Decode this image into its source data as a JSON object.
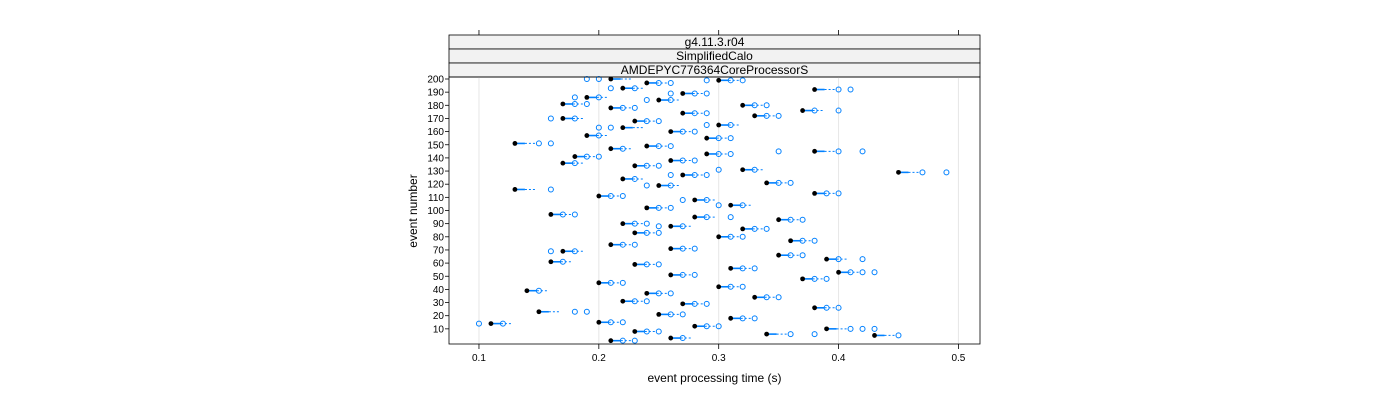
{
  "chart_data": {
    "type": "box-dotplot",
    "strips": [
      "g4.11.3.r04",
      "SimplifiedCalo",
      "AMDEPYC776364CoreProcessorS"
    ],
    "xlabel": "event processing time (s)",
    "ylabel": "event number",
    "xlim": [
      0.075,
      0.518
    ],
    "ylim": [
      0,
      200
    ],
    "x_ticks": [
      0.1,
      0.2,
      0.3,
      0.4,
      0.5
    ],
    "x_tick_labels": [
      "0.1",
      "0.2",
      "0.3",
      "0.4",
      "0.5"
    ],
    "y_ticks": [
      10,
      20,
      30,
      40,
      50,
      60,
      70,
      80,
      90,
      100,
      110,
      120,
      130,
      140,
      150,
      160,
      170,
      180,
      190,
      200
    ],
    "y_tick_labels": [
      "10",
      "20",
      "30",
      "40",
      "50",
      "60",
      "70",
      "80",
      "90",
      "100",
      "110",
      "120",
      "130",
      "140",
      "150",
      "160",
      "170",
      "180",
      "190",
      "200"
    ],
    "grid": "vertical",
    "colors": {
      "median": "#000000",
      "box": "#0080ff",
      "outlier": "#0080ff",
      "strip_bg": "#f2f2f2",
      "grid": "#e6e6e6"
    },
    "events": [
      {
        "y": 200,
        "median": 0.21,
        "outliers": [
          0.19,
          0.2
        ]
      },
      {
        "y": 199,
        "median": 0.3,
        "outliers": [
          0.29,
          0.31,
          0.32
        ]
      },
      {
        "y": 197,
        "median": 0.24,
        "outliers": [
          0.25,
          0.26
        ]
      },
      {
        "y": 193,
        "median": 0.22,
        "outliers": [
          0.21,
          0.23
        ]
      },
      {
        "y": 192,
        "median": 0.38,
        "outliers": [
          0.4,
          0.41
        ]
      },
      {
        "y": 189,
        "median": 0.27,
        "outliers": [
          0.26,
          0.28,
          0.29
        ]
      },
      {
        "y": 186,
        "median": 0.19,
        "outliers": [
          0.18,
          0.2
        ]
      },
      {
        "y": 184,
        "median": 0.25,
        "outliers": [
          0.24,
          0.26
        ]
      },
      {
        "y": 181,
        "median": 0.17,
        "outliers": [
          0.18,
          0.19
        ]
      },
      {
        "y": 180,
        "median": 0.32,
        "outliers": [
          0.33,
          0.34
        ]
      },
      {
        "y": 178,
        "median": 0.21,
        "outliers": [
          0.22,
          0.23
        ]
      },
      {
        "y": 176,
        "median": 0.37,
        "outliers": [
          0.38,
          0.4
        ]
      },
      {
        "y": 174,
        "median": 0.27,
        "outliers": [
          0.28,
          0.29
        ]
      },
      {
        "y": 172,
        "median": 0.33,
        "outliers": [
          0.34,
          0.35
        ]
      },
      {
        "y": 170,
        "median": 0.17,
        "outliers": [
          0.16,
          0.18
        ]
      },
      {
        "y": 168,
        "median": 0.23,
        "outliers": [
          0.24,
          0.25
        ]
      },
      {
        "y": 165,
        "median": 0.3,
        "outliers": [
          0.29,
          0.31
        ]
      },
      {
        "y": 163,
        "median": 0.22,
        "outliers": [
          0.2,
          0.21
        ]
      },
      {
        "y": 160,
        "median": 0.26,
        "outliers": [
          0.27,
          0.28
        ]
      },
      {
        "y": 157,
        "median": 0.19,
        "outliers": [
          0.2
        ]
      },
      {
        "y": 155,
        "median": 0.29,
        "outliers": [
          0.3,
          0.31
        ]
      },
      {
        "y": 151,
        "median": 0.13,
        "outliers": [
          0.15,
          0.16
        ]
      },
      {
        "y": 149,
        "median": 0.24,
        "outliers": [
          0.25,
          0.26
        ]
      },
      {
        "y": 147,
        "median": 0.21,
        "outliers": [
          0.22
        ]
      },
      {
        "y": 145,
        "median": 0.38,
        "outliers": [
          0.35,
          0.4,
          0.42
        ]
      },
      {
        "y": 143,
        "median": 0.29,
        "outliers": [
          0.3,
          0.31
        ]
      },
      {
        "y": 141,
        "median": 0.18,
        "outliers": [
          0.19,
          0.2
        ]
      },
      {
        "y": 138,
        "median": 0.26,
        "outliers": [
          0.27,
          0.28
        ]
      },
      {
        "y": 136,
        "median": 0.17,
        "outliers": [
          0.18
        ]
      },
      {
        "y": 134,
        "median": 0.23,
        "outliers": [
          0.24,
          0.25
        ]
      },
      {
        "y": 131,
        "median": 0.32,
        "outliers": [
          0.3,
          0.33
        ]
      },
      {
        "y": 129,
        "median": 0.45,
        "outliers": [
          0.47,
          0.49
        ]
      },
      {
        "y": 127,
        "median": 0.27,
        "outliers": [
          0.26,
          0.28,
          0.29
        ]
      },
      {
        "y": 124,
        "median": 0.22,
        "outliers": [
          0.23
        ]
      },
      {
        "y": 121,
        "median": 0.34,
        "outliers": [
          0.35,
          0.36
        ]
      },
      {
        "y": 119,
        "median": 0.25,
        "outliers": [
          0.24,
          0.26
        ]
      },
      {
        "y": 116,
        "median": 0.13,
        "outliers": [
          0.16
        ]
      },
      {
        "y": 113,
        "median": 0.38,
        "outliers": [
          0.39,
          0.4
        ]
      },
      {
        "y": 111,
        "median": 0.2,
        "outliers": [
          0.21,
          0.22
        ]
      },
      {
        "y": 108,
        "median": 0.28,
        "outliers": [
          0.27,
          0.29
        ]
      },
      {
        "y": 104,
        "median": 0.31,
        "outliers": [
          0.3,
          0.32
        ]
      },
      {
        "y": 102,
        "median": 0.24,
        "outliers": [
          0.25,
          0.26
        ]
      },
      {
        "y": 97,
        "median": 0.16,
        "outliers": [
          0.17,
          0.18
        ]
      },
      {
        "y": 95,
        "median": 0.28,
        "outliers": [
          0.29,
          0.31
        ]
      },
      {
        "y": 93,
        "median": 0.35,
        "outliers": [
          0.36,
          0.37
        ]
      },
      {
        "y": 90,
        "median": 0.22,
        "outliers": [
          0.23,
          0.24
        ]
      },
      {
        "y": 88,
        "median": 0.26,
        "outliers": [
          0.25,
          0.27
        ]
      },
      {
        "y": 86,
        "median": 0.32,
        "outliers": [
          0.33,
          0.34
        ]
      },
      {
        "y": 83,
        "median": 0.23,
        "outliers": [
          0.24,
          0.25
        ]
      },
      {
        "y": 80,
        "median": 0.3,
        "outliers": [
          0.31,
          0.32
        ]
      },
      {
        "y": 77,
        "median": 0.36,
        "outliers": [
          0.37,
          0.38
        ]
      },
      {
        "y": 74,
        "median": 0.21,
        "outliers": [
          0.22,
          0.23
        ]
      },
      {
        "y": 71,
        "median": 0.26,
        "outliers": [
          0.27,
          0.28
        ]
      },
      {
        "y": 69,
        "median": 0.17,
        "outliers": [
          0.16,
          0.18
        ]
      },
      {
        "y": 66,
        "median": 0.35,
        "outliers": [
          0.36,
          0.37
        ]
      },
      {
        "y": 63,
        "median": 0.39,
        "outliers": [
          0.4,
          0.42
        ]
      },
      {
        "y": 61,
        "median": 0.16,
        "outliers": [
          0.17
        ]
      },
      {
        "y": 59,
        "median": 0.23,
        "outliers": [
          0.24,
          0.25
        ]
      },
      {
        "y": 56,
        "median": 0.31,
        "outliers": [
          0.32,
          0.33
        ]
      },
      {
        "y": 53,
        "median": 0.4,
        "outliers": [
          0.41,
          0.42,
          0.43
        ]
      },
      {
        "y": 51,
        "median": 0.26,
        "outliers": [
          0.27,
          0.28
        ]
      },
      {
        "y": 48,
        "median": 0.37,
        "outliers": [
          0.38,
          0.39
        ]
      },
      {
        "y": 45,
        "median": 0.2,
        "outliers": [
          0.21,
          0.22
        ]
      },
      {
        "y": 42,
        "median": 0.3,
        "outliers": [
          0.31,
          0.32
        ]
      },
      {
        "y": 39,
        "median": 0.14,
        "outliers": [
          0.15
        ]
      },
      {
        "y": 37,
        "median": 0.24,
        "outliers": [
          0.25,
          0.26
        ]
      },
      {
        "y": 34,
        "median": 0.33,
        "outliers": [
          0.34,
          0.35
        ]
      },
      {
        "y": 31,
        "median": 0.22,
        "outliers": [
          0.23,
          0.24
        ]
      },
      {
        "y": 29,
        "median": 0.27,
        "outliers": [
          0.28,
          0.29
        ]
      },
      {
        "y": 26,
        "median": 0.38,
        "outliers": [
          0.39,
          0.4
        ]
      },
      {
        "y": 23,
        "median": 0.15,
        "outliers": [
          0.18,
          0.19
        ]
      },
      {
        "y": 21,
        "median": 0.25,
        "outliers": [
          0.26,
          0.27
        ]
      },
      {
        "y": 18,
        "median": 0.31,
        "outliers": [
          0.32,
          0.33
        ]
      },
      {
        "y": 15,
        "median": 0.2,
        "outliers": [
          0.21,
          0.22
        ]
      },
      {
        "y": 14,
        "median": 0.11,
        "outliers": [
          0.1,
          0.12
        ]
      },
      {
        "y": 12,
        "median": 0.28,
        "outliers": [
          0.29,
          0.3
        ]
      },
      {
        "y": 10,
        "median": 0.39,
        "outliers": [
          0.41,
          0.42,
          0.43
        ]
      },
      {
        "y": 8,
        "median": 0.23,
        "outliers": [
          0.24,
          0.25
        ]
      },
      {
        "y": 6,
        "median": 0.34,
        "outliers": [
          0.36,
          0.38
        ]
      },
      {
        "y": 5,
        "median": 0.43,
        "outliers": [
          0.45
        ]
      },
      {
        "y": 3,
        "median": 0.26,
        "outliers": [
          0.27
        ]
      },
      {
        "y": 1,
        "median": 0.21,
        "outliers": [
          0.22,
          0.23
        ]
      }
    ]
  }
}
